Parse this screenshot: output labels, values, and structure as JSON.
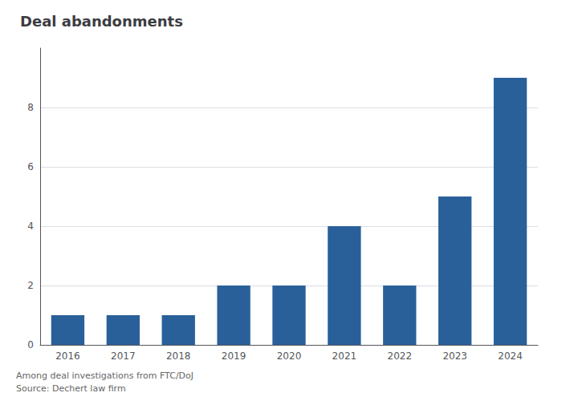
{
  "chart_data": {
    "type": "bar",
    "title": "Deal abandonments",
    "categories": [
      "2016",
      "2017",
      "2018",
      "2019",
      "2020",
      "2021",
      "2022",
      "2023",
      "2024"
    ],
    "values": [
      1,
      1,
      1,
      2,
      2,
      4,
      2,
      5,
      9
    ],
    "color": "#2a6099",
    "ylim": [
      0,
      10
    ],
    "yticks": [
      0,
      2,
      4,
      6,
      8
    ],
    "grid": true,
    "annotations": [
      "Among deal investigations from FTC/DoJ",
      "Source: Dechert law firm"
    ]
  }
}
